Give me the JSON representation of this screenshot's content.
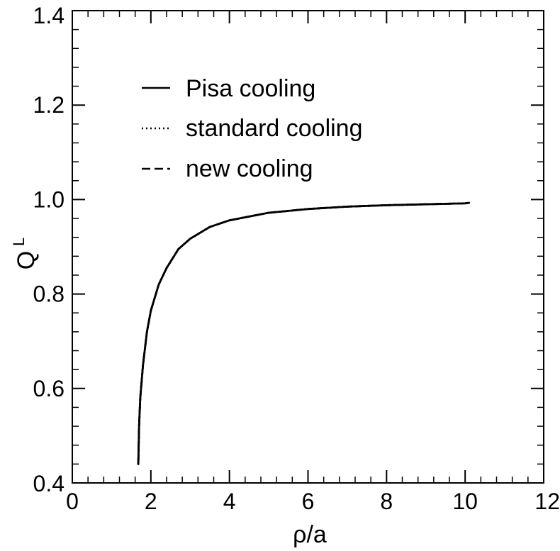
{
  "chart_data": {
    "type": "line",
    "title": "",
    "xlabel": "ρ/a",
    "ylabel": "Q",
    "ylabel_superscript": "L",
    "xlim": [
      0,
      12
    ],
    "ylim": [
      0.4,
      1.4
    ],
    "x_ticks": [
      0,
      2,
      4,
      6,
      8,
      10,
      12
    ],
    "x_tick_labels": [
      "0",
      "2",
      "4",
      "6",
      "8",
      "10",
      "12"
    ],
    "y_ticks": [
      0.4,
      0.6,
      0.8,
      1.0,
      1.2,
      1.4
    ],
    "y_tick_labels": [
      "0.4",
      "0.6",
      "0.8",
      "1.0",
      "1.2",
      "1.4"
    ],
    "grid": false,
    "legend_position": "top-left",
    "series": [
      {
        "name": "Pisa cooling",
        "style": "solid",
        "x": [
          1.68,
          1.7,
          1.73,
          1.8,
          1.9,
          2.0,
          2.2,
          2.4,
          2.7,
          3.0,
          3.5,
          4.0,
          5.0,
          6.0,
          7.0,
          8.0,
          9.0,
          10.0,
          10.1
        ],
        "y": [
          0.44,
          0.52,
          0.58,
          0.65,
          0.72,
          0.765,
          0.82,
          0.855,
          0.895,
          0.917,
          0.942,
          0.956,
          0.972,
          0.98,
          0.985,
          0.988,
          0.99,
          0.992,
          0.993
        ]
      },
      {
        "name": "standard cooling",
        "style": "dotted",
        "x": [
          1.68,
          1.7,
          1.73,
          1.8,
          1.9,
          2.0,
          2.2,
          2.4,
          2.7,
          3.0,
          3.5,
          4.0,
          5.0,
          6.0,
          7.0,
          8.0,
          9.0,
          10.0,
          10.1
        ],
        "y": [
          0.44,
          0.52,
          0.58,
          0.65,
          0.72,
          0.765,
          0.82,
          0.855,
          0.895,
          0.917,
          0.942,
          0.956,
          0.972,
          0.98,
          0.985,
          0.988,
          0.99,
          0.992,
          0.993
        ]
      },
      {
        "name": "new cooling",
        "style": "dashed",
        "x": [
          1.68,
          1.7,
          1.73,
          1.8,
          1.9,
          2.0,
          2.2,
          2.4,
          2.7,
          3.0,
          3.5,
          4.0,
          5.0,
          6.0,
          7.0,
          8.0,
          9.0,
          10.0,
          10.1
        ],
        "y": [
          0.44,
          0.52,
          0.58,
          0.65,
          0.72,
          0.765,
          0.82,
          0.855,
          0.895,
          0.917,
          0.942,
          0.956,
          0.972,
          0.98,
          0.985,
          0.988,
          0.99,
          0.992,
          0.993
        ]
      }
    ]
  }
}
